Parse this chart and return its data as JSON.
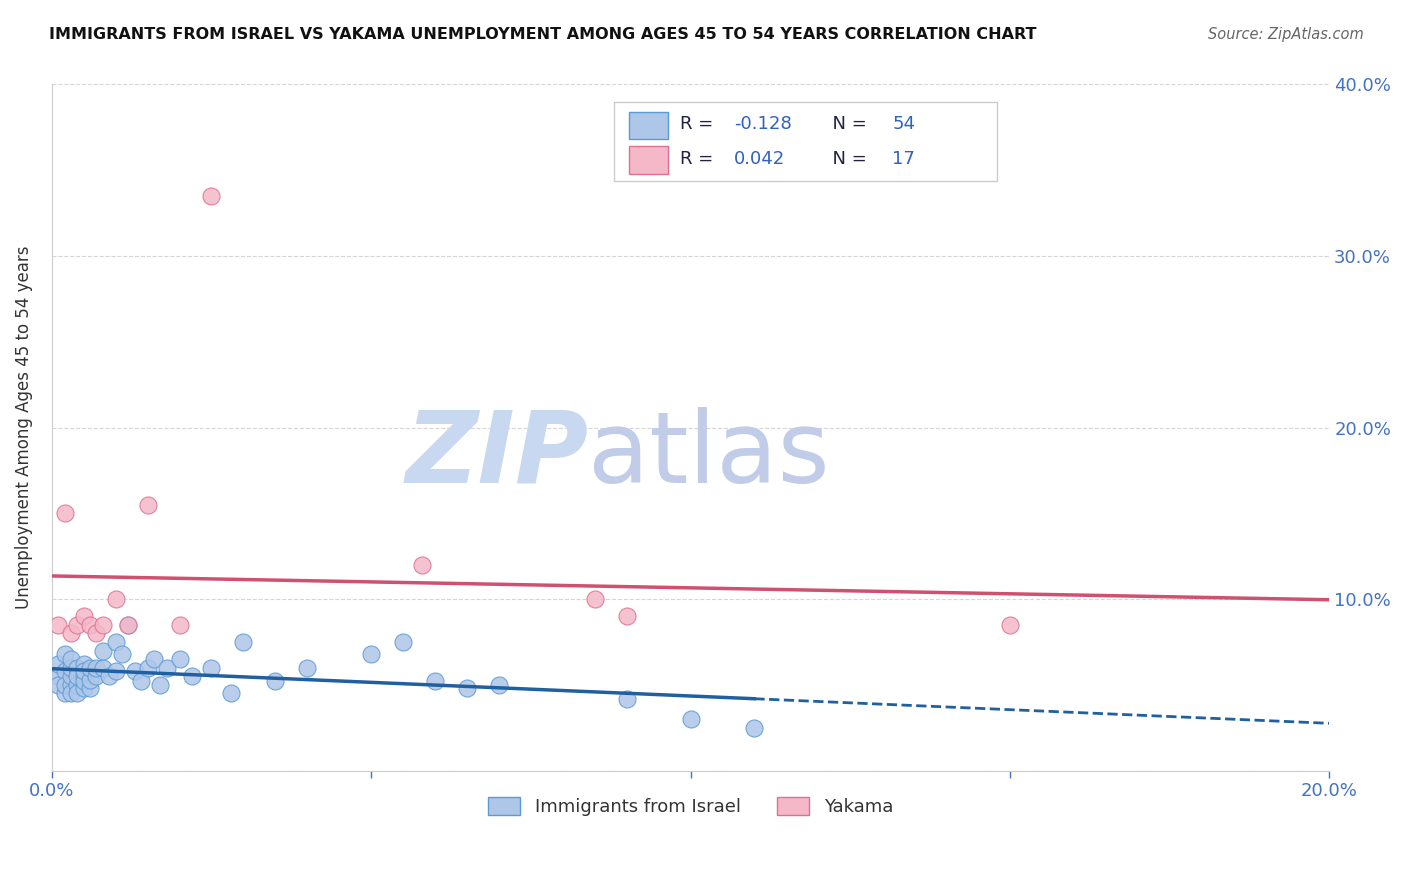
{
  "title": "IMMIGRANTS FROM ISRAEL VS YAKAMA UNEMPLOYMENT AMONG AGES 45 TO 54 YEARS CORRELATION CHART",
  "source": "Source: ZipAtlas.com",
  "ylabel": "Unemployment Among Ages 45 to 54 years",
  "xlim": [
    0.0,
    0.2
  ],
  "ylim": [
    0.0,
    0.4
  ],
  "yticks": [
    0.0,
    0.1,
    0.2,
    0.3,
    0.4
  ],
  "xticks": [
    0.0,
    0.05,
    0.1,
    0.15,
    0.2
  ],
  "legend_blue_label": "Immigrants from Israel",
  "legend_pink_label": "Yakama",
  "R_blue": -0.128,
  "N_blue": 54,
  "R_pink": 0.042,
  "N_pink": 17,
  "blue_fill_color": "#aec6e8",
  "blue_edge_color": "#5b9bd5",
  "pink_fill_color": "#f4b8c8",
  "pink_edge_color": "#e07090",
  "blue_line_color": "#2060a0",
  "pink_line_color": "#d05070",
  "text_color_dark": "#222244",
  "text_color_blue": "#3060c0",
  "axis_tick_color": "#4472c4",
  "grid_color": "#cccccc",
  "background_color": "#ffffff",
  "watermark_zip_color": "#c8d8f0",
  "watermark_atlas_color": "#c0cce8",
  "blue_scatter_x": [
    0.001,
    0.001,
    0.001,
    0.002,
    0.002,
    0.002,
    0.002,
    0.003,
    0.003,
    0.003,
    0.003,
    0.003,
    0.004,
    0.004,
    0.004,
    0.004,
    0.005,
    0.005,
    0.005,
    0.005,
    0.005,
    0.006,
    0.006,
    0.006,
    0.007,
    0.007,
    0.008,
    0.008,
    0.009,
    0.01,
    0.01,
    0.011,
    0.012,
    0.013,
    0.014,
    0.015,
    0.016,
    0.017,
    0.018,
    0.02,
    0.022,
    0.025,
    0.028,
    0.03,
    0.035,
    0.04,
    0.05,
    0.055,
    0.06,
    0.065,
    0.07,
    0.09,
    0.1,
    0.11
  ],
  "blue_scatter_y": [
    0.055,
    0.05,
    0.062,
    0.045,
    0.058,
    0.05,
    0.068,
    0.05,
    0.055,
    0.045,
    0.06,
    0.065,
    0.05,
    0.045,
    0.06,
    0.055,
    0.048,
    0.055,
    0.062,
    0.052,
    0.058,
    0.048,
    0.053,
    0.06,
    0.055,
    0.06,
    0.06,
    0.07,
    0.055,
    0.058,
    0.075,
    0.068,
    0.085,
    0.058,
    0.052,
    0.06,
    0.065,
    0.05,
    0.06,
    0.065,
    0.055,
    0.06,
    0.045,
    0.075,
    0.052,
    0.06,
    0.068,
    0.075,
    0.052,
    0.048,
    0.05,
    0.042,
    0.03,
    0.025
  ],
  "pink_scatter_x": [
    0.001,
    0.002,
    0.003,
    0.004,
    0.005,
    0.006,
    0.007,
    0.008,
    0.01,
    0.012,
    0.015,
    0.02,
    0.025,
    0.058,
    0.085,
    0.09,
    0.15
  ],
  "pink_scatter_y": [
    0.085,
    0.15,
    0.08,
    0.085,
    0.09,
    0.085,
    0.08,
    0.085,
    0.1,
    0.085,
    0.155,
    0.085,
    0.335,
    0.12,
    0.1,
    0.09,
    0.085
  ]
}
